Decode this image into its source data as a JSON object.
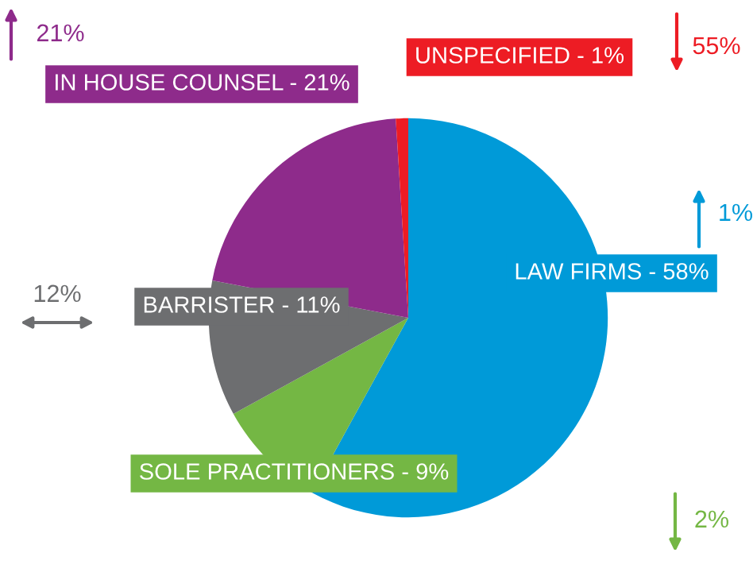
{
  "chart_data": {
    "type": "pie",
    "categories": [
      "LAW FIRMS - 58%",
      "SOLE PRACTITIONERS - 9%",
      "BARRISTER - 11%",
      "IN HOUSE COUNSEL - 21%",
      "UNSPECIFIED - 1%"
    ],
    "values": [
      58,
      9,
      11,
      21,
      1
    ],
    "colors": [
      "#009ad8",
      "#74b744",
      "#6d6e70",
      "#8e2b8b",
      "#ed1c24"
    ],
    "annotations": [
      "1%",
      "2%",
      "12%",
      "21%",
      "55%"
    ]
  }
}
